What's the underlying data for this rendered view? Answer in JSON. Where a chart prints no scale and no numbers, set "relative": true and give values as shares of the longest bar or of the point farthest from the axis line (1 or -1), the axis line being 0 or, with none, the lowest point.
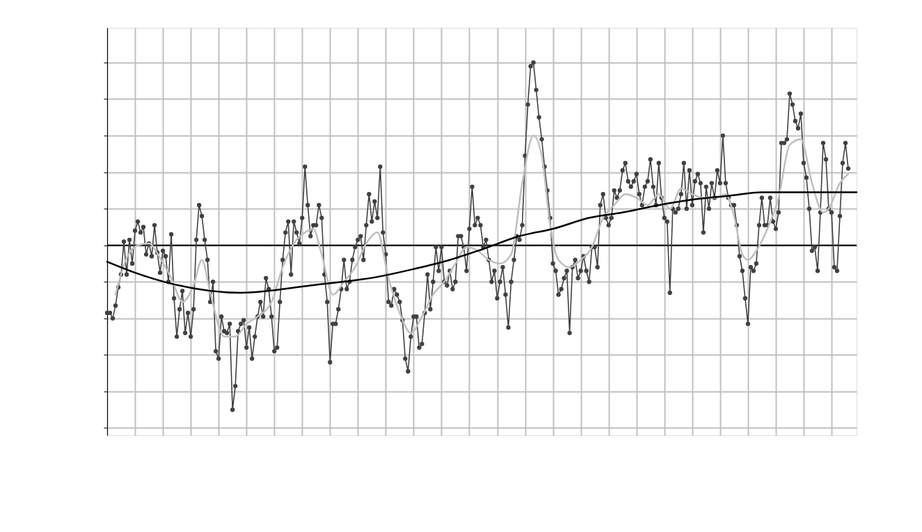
{
  "chart_data": {
    "type": "line",
    "relative": true,
    "grid": true,
    "tick_labels": false,
    "categories": [
      null,
      null,
      null,
      null,
      null,
      null,
      null,
      null,
      null,
      null,
      null,
      null,
      null,
      null,
      null,
      null,
      null,
      null,
      null,
      null,
      null,
      null,
      null,
      null,
      null,
      null,
      null,
      null,
      null,
      null,
      null,
      null,
      null,
      null,
      null,
      null,
      null,
      null,
      null,
      null,
      null,
      null,
      null,
      null,
      null,
      null,
      null,
      null,
      null,
      null,
      null,
      null,
      null,
      null,
      null,
      null,
      null,
      null,
      null,
      null,
      null,
      null,
      null,
      null,
      null,
      null,
      null,
      null,
      null,
      null,
      null,
      null,
      null,
      null,
      null,
      null,
      null,
      null,
      null,
      null,
      null,
      null,
      null,
      null,
      null,
      null,
      null,
      null,
      null,
      null,
      null,
      null,
      null,
      null,
      null,
      null,
      null,
      null,
      null,
      null,
      null,
      null,
      null,
      null,
      null,
      null,
      null,
      null,
      null,
      null,
      null,
      null,
      null,
      null,
      null,
      null,
      null,
      null,
      null,
      null,
      null,
      null,
      null,
      null,
      null,
      null,
      null,
      null,
      null,
      null,
      null,
      null,
      null,
      null,
      null,
      null,
      null,
      null,
      null,
      null,
      null,
      null,
      null,
      null,
      null,
      null,
      null,
      null,
      null,
      null,
      null,
      null,
      null,
      null,
      null,
      null,
      null,
      null,
      null,
      null,
      null,
      null,
      null,
      null,
      null,
      null,
      null,
      null,
      null,
      null,
      null,
      null,
      null,
      null,
      null,
      null,
      null,
      null,
      null,
      null,
      null,
      null,
      null,
      null,
      null,
      null,
      null,
      null,
      null,
      null,
      null,
      null,
      null,
      null,
      null,
      null,
      null,
      null,
      null,
      null,
      null,
      null,
      null,
      null,
      null,
      null,
      null,
      null,
      null,
      null,
      null,
      null,
      null,
      null,
      null,
      null,
      null,
      null,
      null,
      null,
      null,
      null,
      null,
      null,
      null,
      null,
      null,
      null,
      null,
      null,
      null,
      null,
      null,
      null,
      null,
      null,
      null,
      null,
      null,
      null,
      null,
      null,
      null,
      null,
      null,
      null,
      null,
      null,
      null,
      null,
      null,
      null,
      null,
      null,
      null,
      null,
      null,
      null,
      null,
      null,
      null,
      null,
      null,
      null,
      null,
      null,
      null,
      null,
      null,
      null
    ],
    "series": [
      {
        "color": "#404040",
        "marker": "circle",
        "values": [
          -0.37,
          -0.37,
          -0.4,
          -0.33,
          -0.23,
          -0.16,
          0.02,
          -0.16,
          0.03,
          -0.1,
          0.08,
          0.13,
          0.07,
          0.1,
          -0.05,
          0.01,
          -0.06,
          0.11,
          -0.04,
          -0.15,
          -0.03,
          -0.06,
          -0.2,
          0.06,
          -0.29,
          -0.5,
          -0.35,
          -0.25,
          -0.48,
          -0.37,
          -0.5,
          -0.35,
          0.03,
          0.22,
          0.16,
          0.03,
          -0.08,
          -0.31,
          -0.2,
          -0.58,
          -0.62,
          -0.39,
          -0.47,
          -0.48,
          -0.43,
          -0.9,
          -0.77,
          -0.47,
          -0.43,
          -0.41,
          -0.56,
          -0.45,
          -0.62,
          -0.5,
          -0.39,
          -0.31,
          -0.39,
          -0.18,
          -0.24,
          -0.39,
          -0.58,
          -0.56,
          -0.31,
          -0.08,
          0.07,
          0.13,
          -0.16,
          0.13,
          0.07,
          0.01,
          0.15,
          0.43,
          0.22,
          0.05,
          0.11,
          0.11,
          0.22,
          0.15,
          -0.16,
          -0.31,
          -0.64,
          -0.43,
          -0.43,
          -0.35,
          -0.24,
          -0.08,
          -0.24,
          -0.2,
          -0.08,
          -0.01,
          0.03,
          0.05,
          -0.08,
          0.11,
          0.28,
          0.13,
          0.24,
          0.15,
          0.43,
          0.07,
          -0.05,
          -0.31,
          -0.33,
          -0.24,
          -0.27,
          -0.31,
          -0.41,
          -0.62,
          -0.69,
          -0.5,
          -0.39,
          -0.39,
          -0.56,
          -0.54,
          -0.37,
          -0.16,
          -0.35,
          -0.2,
          -0.01,
          -0.14,
          -0.01,
          -0.2,
          -0.22,
          -0.14,
          -0.24,
          -0.2,
          0.05,
          0.05,
          -0.01,
          -0.14,
          0.09,
          0.32,
          0.11,
          0.15,
          0.11,
          -0.01,
          0.03,
          -0.08,
          -0.2,
          -0.14,
          -0.29,
          -0.2,
          -0.12,
          -0.27,
          -0.45,
          -0.2,
          -0.08,
          0.05,
          0.03,
          0.11,
          0.49,
          0.77,
          0.98,
          1.0,
          0.85,
          0.7,
          0.58,
          0.43,
          0.3,
          0.15,
          -0.1,
          -0.14,
          -0.27,
          -0.24,
          -0.18,
          -0.14,
          -0.48,
          -0.12,
          -0.08,
          -0.18,
          -0.14,
          -0.06,
          -0.14,
          -0.2,
          -0.01,
          -0.01,
          -0.12,
          0.22,
          0.28,
          0.15,
          0.11,
          0.15,
          0.3,
          0.26,
          0.3,
          0.41,
          0.45,
          0.35,
          0.32,
          0.35,
          0.39,
          0.28,
          0.22,
          0.32,
          0.35,
          0.47,
          0.32,
          0.22,
          0.45,
          0.26,
          0.15,
          0.13,
          -0.26,
          0.2,
          0.18,
          0.2,
          0.28,
          0.45,
          0.2,
          0.41,
          0.22,
          0.35,
          0.39,
          0.34,
          0.07,
          0.32,
          0.2,
          0.34,
          0.26,
          0.41,
          0.34,
          0.6,
          0.34,
          0.26,
          0.22,
          0.22,
          0.11,
          -0.06,
          -0.14,
          -0.29,
          -0.43,
          -0.12,
          -0.14,
          -0.1,
          0.11,
          0.26,
          0.11,
          0.11,
          0.26,
          0.13,
          0.09,
          0.18,
          0.56,
          0.56,
          0.58,
          0.83,
          0.77,
          0.68,
          0.64,
          0.72,
          0.45,
          0.37,
          0.2,
          -0.03,
          -0.01,
          -0.14,
          0.18,
          0.56,
          0.47,
          0.2,
          0.18,
          -0.12,
          -0.14,
          0.16,
          0.45,
          0.56,
          0.42,
          null,
          null,
          null
        ]
      },
      {
        "color": "#bfbfbf",
        "values": [
          null,
          null,
          null,
          -0.27,
          null,
          null,
          null,
          -0.07,
          null,
          null,
          null,
          0.0,
          null,
          null,
          null,
          0.01,
          null,
          null,
          null,
          -0.07,
          null,
          null,
          null,
          -0.18,
          null,
          null,
          null,
          -0.31,
          null,
          null,
          null,
          -0.22,
          null,
          null,
          -0.08,
          null,
          null,
          -0.26,
          null,
          null,
          null,
          null,
          -0.5,
          null,
          null,
          null,
          -0.5,
          null,
          null,
          null,
          -0.43,
          null,
          null,
          null,
          -0.39,
          null,
          null,
          null,
          null,
          -0.31,
          null,
          null,
          null,
          -0.12,
          null,
          null,
          null,
          0.01,
          null,
          null,
          null,
          0.07,
          null,
          null,
          0.09,
          null,
          null,
          -0.05,
          null,
          null,
          null,
          -0.27,
          null,
          null,
          null,
          -0.2,
          null,
          null,
          null,
          -0.12,
          null,
          null,
          null,
          0.01,
          null,
          null,
          null,
          0.07,
          null,
          null,
          null,
          -0.18,
          null,
          null,
          null,
          -0.37,
          null,
          null,
          null,
          -0.48,
          null,
          null,
          null,
          -0.39,
          null,
          null,
          null,
          -0.27,
          null,
          null,
          null,
          -0.2,
          null,
          null,
          null,
          -0.1,
          null,
          null,
          null,
          -0.01,
          null,
          null,
          null,
          -0.03,
          null,
          null,
          null,
          -0.08,
          null,
          null,
          null,
          -0.1,
          null,
          null,
          null,
          -0.05,
          null,
          null,
          null,
          0.34,
          null,
          null,
          null,
          0.6,
          null,
          null,
          0.49,
          null,
          null,
          0.11,
          null,
          null,
          -0.08,
          null,
          null,
          null,
          -0.12,
          null,
          null,
          null,
          -0.08,
          null,
          null,
          null,
          -0.01,
          null,
          null,
          null,
          0.15,
          null,
          null,
          null,
          0.22,
          null,
          null,
          null,
          0.28,
          null,
          null,
          null,
          0.26,
          null,
          null,
          null,
          0.22,
          null,
          null,
          null,
          0.28,
          null,
          null,
          null,
          0.2,
          null,
          null,
          null,
          0.31,
          null,
          null,
          null,
          0.28,
          null,
          null,
          null,
          0.26,
          null,
          null,
          null,
          0.26,
          null,
          null,
          null,
          0.28,
          null,
          null,
          0.16,
          null,
          null,
          -0.05,
          null,
          -0.08,
          null,
          null,
          -0.03,
          null,
          null,
          null,
          0.09,
          null,
          null,
          null,
          0.26,
          null,
          null,
          null,
          0.55,
          null,
          null,
          null,
          0.58,
          null,
          null,
          null,
          0.34,
          null,
          null,
          null,
          0.18,
          null,
          0.2,
          null,
          null,
          null,
          0.34,
          null,
          null,
          0.39,
          null,
          null,
          null
        ]
      },
      {
        "color": "#000000",
        "values": [
          -0.09,
          null,
          null,
          null,
          null,
          null,
          null,
          null,
          null,
          null,
          -0.15,
          null,
          null,
          null,
          null,
          null,
          null,
          null,
          null,
          null,
          null,
          null,
          null,
          -0.21,
          null,
          null,
          null,
          null,
          null,
          null,
          null,
          null,
          null,
          null,
          null,
          null,
          null,
          null,
          null,
          null,
          null,
          null,
          null,
          null,
          null,
          null,
          null,
          null,
          -0.26,
          null,
          null,
          null,
          null,
          null,
          null,
          null,
          null,
          null,
          null,
          null,
          null,
          null,
          null,
          null,
          null,
          null,
          null,
          null,
          null,
          null,
          null,
          null,
          null,
          -0.22,
          null,
          null,
          null,
          null,
          null,
          null,
          null,
          null,
          null,
          null,
          null,
          null,
          null,
          null,
          null,
          null,
          null,
          null,
          null,
          null,
          null,
          null,
          null,
          null,
          -0.17,
          null,
          null,
          null,
          null,
          null,
          null,
          null,
          null,
          null,
          null,
          null,
          -0.13,
          null,
          null,
          null,
          null,
          null,
          null,
          null,
          null,
          null,
          null,
          null,
          null,
          -0.08,
          null,
          null,
          null,
          null,
          null,
          null,
          null,
          null,
          null,
          null,
          null,
          -0.02,
          null,
          null,
          null,
          null,
          null,
          null,
          null,
          null,
          null,
          null,
          null,
          null,
          0.05,
          null,
          null,
          null,
          null,
          null,
          null,
          null,
          null,
          null,
          null,
          null,
          0.09,
          null,
          null,
          null,
          null,
          null,
          null,
          null,
          null,
          null,
          null,
          null,
          null,
          0.15,
          null,
          null,
          null,
          null,
          null,
          null,
          null,
          null,
          null,
          null,
          null,
          0.18,
          null,
          null,
          null,
          null,
          null,
          null,
          null,
          null,
          null,
          null,
          null,
          null,
          0.22,
          null,
          null,
          null,
          null,
          null,
          null,
          null,
          null,
          null,
          null,
          null,
          0.25,
          null,
          null,
          null,
          null,
          null,
          null,
          null,
          null,
          null,
          null,
          null,
          null,
          0.27,
          null,
          null,
          null,
          null,
          null,
          null,
          null,
          null,
          null,
          null,
          null,
          0.29,
          null,
          null,
          null,
          null,
          null,
          null,
          null,
          null,
          null,
          null,
          null,
          null,
          0.29,
          null,
          null,
          null,
          null,
          null,
          null,
          null,
          null,
          null,
          null,
          null,
          0.29,
          null,
          null,
          null,
          null,
          null,
          null,
          null,
          null,
          0.29
        ]
      }
    ]
  }
}
